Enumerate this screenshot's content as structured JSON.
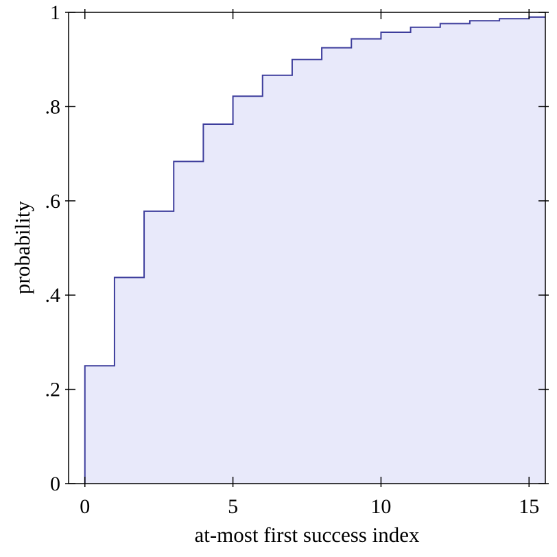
{
  "figure": {
    "background": "#ffffff"
  },
  "chart_data": {
    "type": "area",
    "subtype": "step-cdf",
    "title": "",
    "xlabel": "at-most first success index",
    "ylabel": "probability",
    "x": [
      0,
      1,
      2,
      3,
      4,
      5,
      6,
      7,
      8,
      9,
      10,
      11,
      12,
      13,
      14,
      15
    ],
    "values": [
      0.25,
      0.4375,
      0.5781,
      0.6836,
      0.7627,
      0.822,
      0.8665,
      0.8999,
      0.9249,
      0.9437,
      0.9578,
      0.9683,
      0.9762,
      0.9822,
      0.9866,
      0.99
    ],
    "xlim": [
      -0.55,
      15.55
    ],
    "ylim": [
      0,
      1
    ],
    "x_ticks": [
      0,
      5,
      10,
      15
    ],
    "x_tick_labels": [
      "0",
      "5",
      "10",
      "15"
    ],
    "y_ticks": [
      0,
      0.2,
      0.4,
      0.6,
      0.8,
      1
    ],
    "y_tick_labels": [
      "0",
      ".2",
      ".4",
      ".6",
      ".8",
      "1"
    ],
    "grid": false,
    "legend": "none",
    "line_color": "#3d3d9c",
    "fill_color": "#e8e9fa",
    "axis_color": "#000000"
  }
}
